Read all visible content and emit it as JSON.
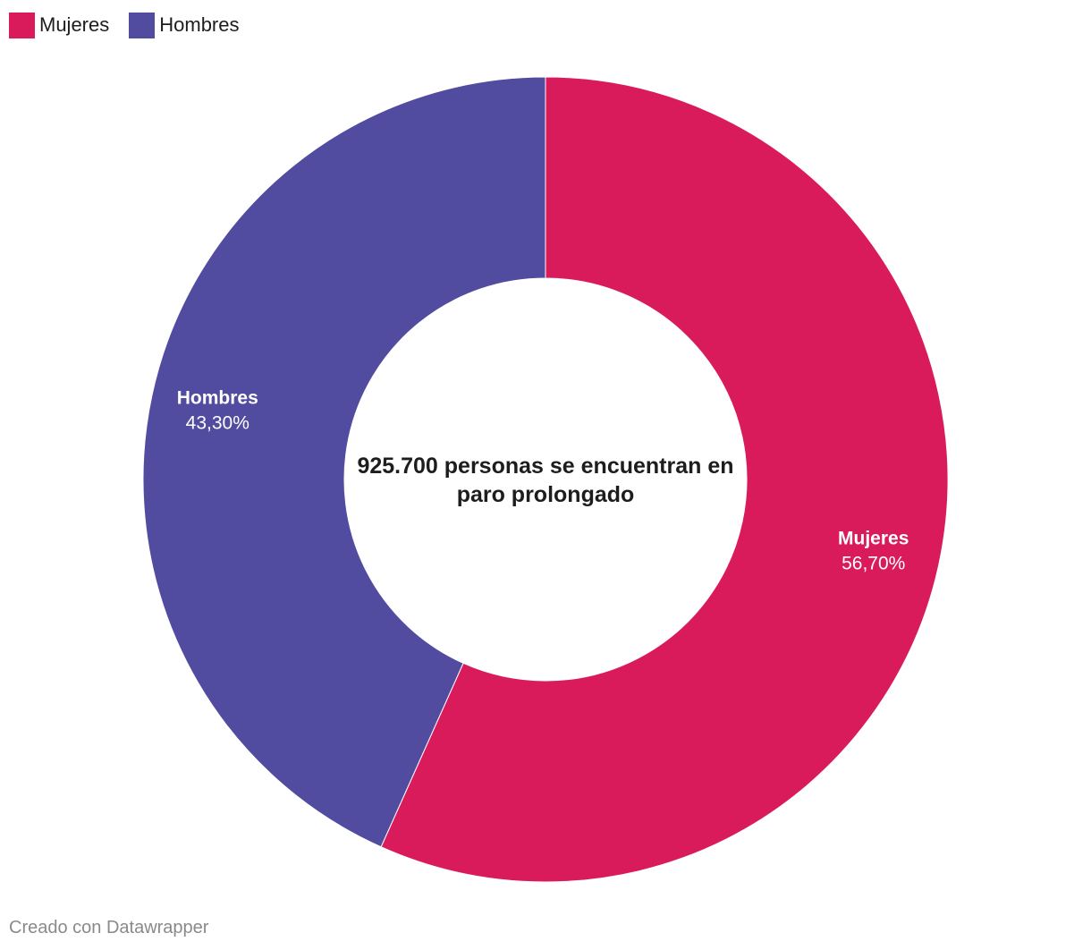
{
  "chart_data": {
    "type": "pie",
    "variant": "donut",
    "slices": [
      {
        "name": "Mujeres",
        "value": 56.7,
        "display": "56,70%",
        "color": "#d91b5c"
      },
      {
        "name": "Hombres",
        "value": 43.3,
        "display": "43,30%",
        "color": "#514c9f"
      }
    ],
    "center_text": "925.700 personas se encuentran en paro prolongado",
    "legend": [
      "Mujeres",
      "Hombres"
    ],
    "legend_position": "top-left"
  },
  "footer": {
    "credit": "Creado con Datawrapper"
  }
}
